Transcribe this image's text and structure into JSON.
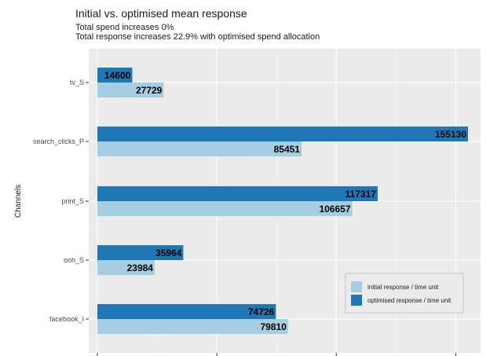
{
  "chart_data": {
    "type": "bar",
    "orientation": "horizontal",
    "title": "Initial vs. optimised mean response",
    "subtitle_lines": [
      "Total spend increases 0%",
      "Total response increases 22.9% with optimised spend allocation"
    ],
    "ylabel": "Channels",
    "xlabel": "",
    "categories": [
      "tv_S",
      "search_clicks_P",
      "print_S",
      "ooh_S",
      "facebook_I"
    ],
    "series": [
      {
        "name": "optimised response / time unit",
        "values": [
          14600,
          155130,
          117317,
          35964,
          74726
        ],
        "color": "#1f78b4"
      },
      {
        "name": "initial response / time unit",
        "values": [
          27729,
          85451,
          106657,
          23984,
          79810
        ],
        "color": "#a6cee3"
      }
    ],
    "xlim": [
      -3000,
      160000
    ],
    "grid": true,
    "legend_position": "bottom-right",
    "panel_background": "#ebebeb"
  }
}
